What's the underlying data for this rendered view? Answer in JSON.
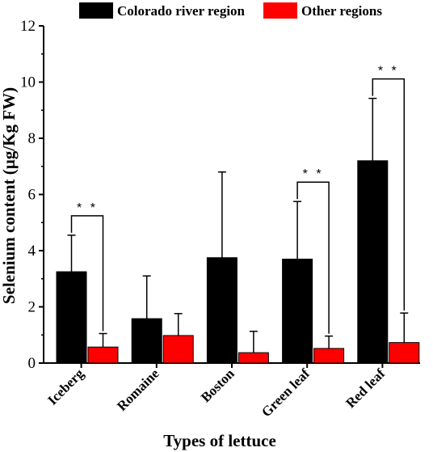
{
  "chart_data": {
    "type": "bar",
    "xlabel": "Types of lettuce",
    "ylabel": "Selenium content (µg/Kg FW)",
    "ylim": [
      0,
      12
    ],
    "yticks": [
      "0",
      "2",
      "4",
      "6",
      "8",
      "10",
      "12"
    ],
    "categories": [
      "Iceberg",
      "Romaine",
      "Boston",
      "Green leaf",
      "Red leaf"
    ],
    "series": [
      {
        "name": "Colorado river region",
        "color": "#000000",
        "values": [
          3.25,
          1.58,
          3.75,
          3.7,
          7.2
        ],
        "errors": [
          1.3,
          1.52,
          3.05,
          2.05,
          2.22
        ]
      },
      {
        "name": "Other regions",
        "color": "#ff0000",
        "values": [
          0.57,
          0.98,
          0.37,
          0.52,
          0.73
        ],
        "errors": [
          0.48,
          0.78,
          0.76,
          0.44,
          1.05
        ]
      }
    ],
    "significance": [
      {
        "category": "Iceberg",
        "label": "* *"
      },
      {
        "category": "Green leaf",
        "label": "* *"
      },
      {
        "category": "Red leaf",
        "label": "* *"
      }
    ],
    "legend_position": "top"
  }
}
